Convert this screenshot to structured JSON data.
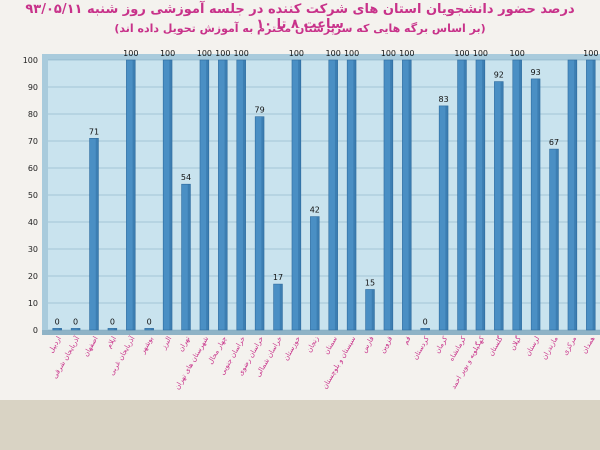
{
  "chart_data": {
    "type": "bar",
    "title": "درصد حضور دانشجویان استان های شرکت کننده در جلسه آموزشی روز شنبه ۹۳/۰۵/۱۱ ساعت ۸ تا ۱۰",
    "subtitle": "(بر اساس برگه هایی که سرپرستان محترم به آموزش تحویل داده اند)",
    "categories": [
      "اردبیل",
      "آذربایجان شرقی",
      "اصفهان",
      "ایلام",
      "آذربایجان غربی",
      "بوشهر",
      "البرز",
      "تهران",
      "شهرستان های تهران",
      "چهار محال",
      "خراسان جنوبی",
      "خراسان رضوی",
      "خراسان شمالی",
      "خوزستان",
      "زنجان",
      "سمنان",
      "سیستان و بلوچستان",
      "فارس",
      "قزوین",
      "قم",
      "کردستان",
      "کرمان",
      "کرمانشاه",
      "کهگیلویه و بویر احمد",
      "گلستان",
      "گیلان",
      "لرستان",
      "مازندران",
      "مرکزی",
      "همدان"
    ],
    "values": [
      0,
      0,
      71,
      0,
      100,
      0,
      100,
      54,
      100,
      100,
      100,
      79,
      17,
      100,
      42,
      100,
      100,
      15,
      100,
      100,
      0,
      83,
      100,
      100,
      92,
      100,
      93,
      67,
      100,
      100
    ],
    "value_labels": [
      "0",
      "0",
      "71",
      "0",
      "100",
      "0",
      "100",
      "54",
      "100",
      "100",
      "100",
      "79",
      "17",
      "100",
      "42",
      "100",
      "100",
      "15",
      "100",
      "100",
      "0",
      "83",
      "100",
      "100",
      "92",
      "100",
      "93",
      "67",
      "",
      "100"
    ],
    "yticks": [
      0,
      10,
      20,
      30,
      40,
      50,
      60,
      70,
      80,
      90,
      100
    ],
    "ylim": [
      0,
      100
    ],
    "grid": true,
    "legend": "none",
    "colors": {
      "bar": "#4a8fc4",
      "bar_dark": "#2d6a9e",
      "plot_bg": "#c9e3ee",
      "wall": "#a9cbdc"
    }
  }
}
